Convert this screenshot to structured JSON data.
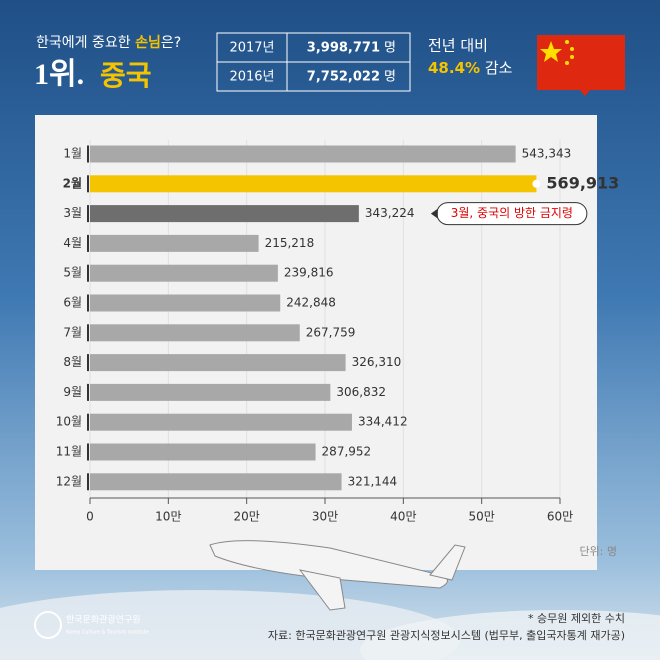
{
  "header": {
    "question_a": "한국에게 중요한 ",
    "question_b": "손님",
    "question_c": "은?",
    "rank": "1위.",
    "country": "중국",
    "table": {
      "rows": [
        [
          "2017년",
          "3,998,771",
          "명"
        ],
        [
          "2016년",
          "7,752,022",
          "명"
        ]
      ]
    },
    "change_label": "전년 대비",
    "change_value": "48.4%",
    "change_word": "감소"
  },
  "chart_data": {
    "type": "hbar",
    "categories": [
      "1월",
      "2월",
      "3월",
      "4월",
      "5월",
      "6월",
      "7월",
      "8월",
      "9월",
      "10월",
      "11월",
      "12월"
    ],
    "values": [
      543343,
      569913,
      343224,
      215218,
      239816,
      242848,
      267759,
      326310,
      306832,
      334412,
      287952,
      321144
    ],
    "value_labels": [
      "543,343",
      "569,913",
      "343,224",
      "215,218",
      "239,816",
      "242,848",
      "267,759",
      "326,310",
      "306,832",
      "334,412",
      "287,952",
      "321,144"
    ],
    "colors": [
      "#a8a8a8",
      "#f5c400",
      "#6e6e6e",
      "#a8a8a8",
      "#a8a8a8",
      "#a8a8a8",
      "#a8a8a8",
      "#a8a8a8",
      "#a8a8a8",
      "#a8a8a8",
      "#a8a8a8",
      "#a8a8a8"
    ],
    "xlim": [
      0,
      600000
    ],
    "xticks": [
      0,
      {
        "value": 100000,
        "label": "10만"
      },
      {
        "value": 200000,
        "label": "20만"
      },
      {
        "value": 300000,
        "label": "30만"
      },
      {
        "value": 400000,
        "label": "40만"
      },
      {
        "value": 500000,
        "label": "50만"
      },
      {
        "value": 600000,
        "label": "60만"
      }
    ],
    "grid": true,
    "annotation": "3월, 중국의 방한 금지령",
    "unit": "단위: 명"
  },
  "footer": {
    "note": "* 승무원 제외한 수치",
    "source": "자료: 한국문화관광연구원 관광지식정보시스템 (법무부, 출입국자통계 재가공)",
    "logo_ko": "한국문화관광연구원",
    "logo_en": "Korea Culture & Tourism Institute"
  }
}
